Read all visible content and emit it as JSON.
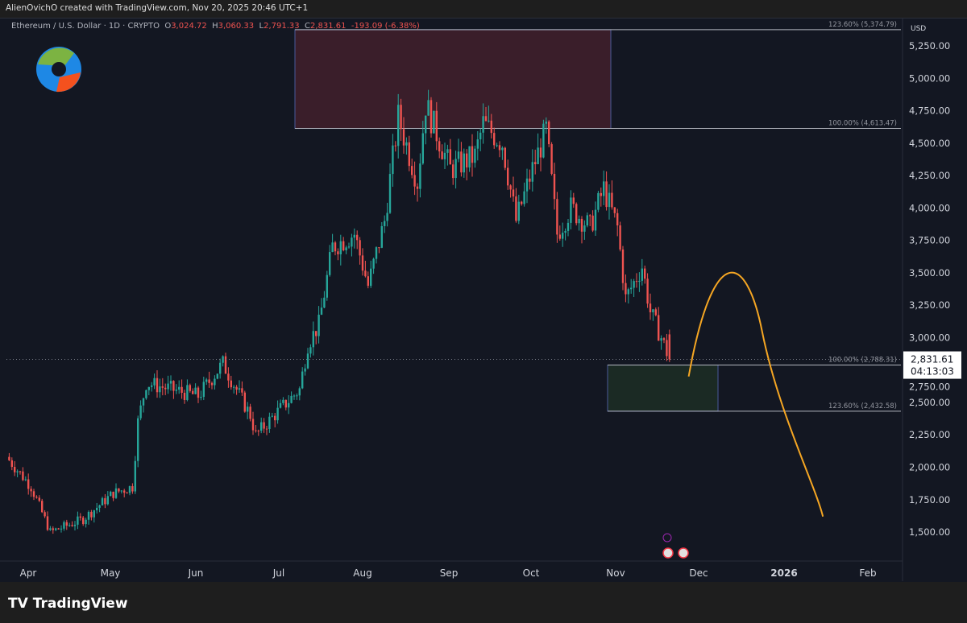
{
  "header": {
    "attribution": "AlienOvichO created with TradingView.com, Nov 20, 2025 20:46 UTC+1"
  },
  "legend": {
    "symbol": "Ethereum / U.S. Dollar · 1D · CRYPTO",
    "o_label": "O",
    "o": "3,024.72",
    "h_label": "H",
    "h": "3,060.33",
    "l_label": "L",
    "l": "2,791.33",
    "c_label": "C",
    "c": "2,831.61",
    "change": "-193.09 (-6.38%)"
  },
  "footer": {
    "brand": "TradingView"
  },
  "colors": {
    "up": "#26a69a",
    "down": "#ef5350",
    "projection": "#f5a623",
    "resistance_box": "#3a1e2a",
    "support_box": "#1b2a24"
  },
  "chart_data": {
    "type": "candlestick",
    "currency": "USD",
    "ylim": [
      1300,
      5400
    ],
    "y_ticks": [
      "5,250.00",
      "5,000.00",
      "4,750.00",
      "4,500.00",
      "4,250.00",
      "4,000.00",
      "3,750.00",
      "3,500.00",
      "3,250.00",
      "3,000.00",
      "2,750.00",
      "2,500.00",
      "2,250.00",
      "2,000.00",
      "1,750.00",
      "1,500.00"
    ],
    "x_ticks": [
      "Apr",
      "May",
      "Jun",
      "Jul",
      "Aug",
      "Sep",
      "Oct",
      "Nov",
      "Dec",
      "2026",
      "Feb"
    ],
    "last_price": "2,831.61",
    "countdown": "04:13:03",
    "approx_closes": [
      [
        "2025-03-23",
        2080
      ],
      [
        "2025-04-01",
        1850
      ],
      [
        "2025-04-08",
        1500
      ],
      [
        "2025-04-20",
        1600
      ],
      [
        "2025-05-01",
        1800
      ],
      [
        "2025-05-08",
        1850
      ],
      [
        "2025-05-10",
        2350
      ],
      [
        "2025-05-13",
        2650
      ],
      [
        "2025-06-01",
        2550
      ],
      [
        "2025-06-10",
        2800
      ],
      [
        "2025-06-20",
        2400
      ],
      [
        "2025-06-22",
        2250
      ],
      [
        "2025-07-01",
        2450
      ],
      [
        "2025-07-08",
        2600
      ],
      [
        "2025-07-11",
        2950
      ],
      [
        "2025-07-15",
        3100
      ],
      [
        "2025-07-20",
        3700
      ],
      [
        "2025-07-28",
        3800
      ],
      [
        "2025-08-02",
        3400
      ],
      [
        "2025-08-08",
        3900
      ],
      [
        "2025-08-13",
        4700
      ],
      [
        "2025-08-20",
        4200
      ],
      [
        "2025-08-23",
        4800
      ],
      [
        "2025-09-01",
        4300
      ],
      [
        "2025-09-10",
        4400
      ],
      [
        "2025-09-13",
        4650
      ],
      [
        "2025-09-20",
        4500
      ],
      [
        "2025-09-25",
        3900
      ],
      [
        "2025-10-01",
        4300
      ],
      [
        "2025-10-06",
        4600
      ],
      [
        "2025-10-10",
        3800
      ],
      [
        "2025-10-15",
        4000
      ],
      [
        "2025-10-22",
        3850
      ],
      [
        "2025-10-27",
        4150
      ],
      [
        "2025-11-01",
        3850
      ],
      [
        "2025-11-04",
        3300
      ],
      [
        "2025-11-10",
        3550
      ],
      [
        "2025-11-13",
        3200
      ],
      [
        "2025-11-17",
        3000
      ],
      [
        "2025-11-20",
        2831.61
      ]
    ],
    "fib_levels": [
      {
        "label": "123.60% (5,374.79)",
        "price": 5374.79
      },
      {
        "label": "100.00% (4,613.47)",
        "price": 4613.47
      },
      {
        "label": "100.00% (2,788.31)",
        "price": 2788.31
      },
      {
        "label": "123.60% (2,432.58)",
        "price": 2432.58
      }
    ],
    "projection": [
      [
        "2025-11-27",
        2700
      ],
      [
        "2025-12-12",
        3300
      ],
      [
        "2026-01-15",
        1620
      ]
    ]
  }
}
